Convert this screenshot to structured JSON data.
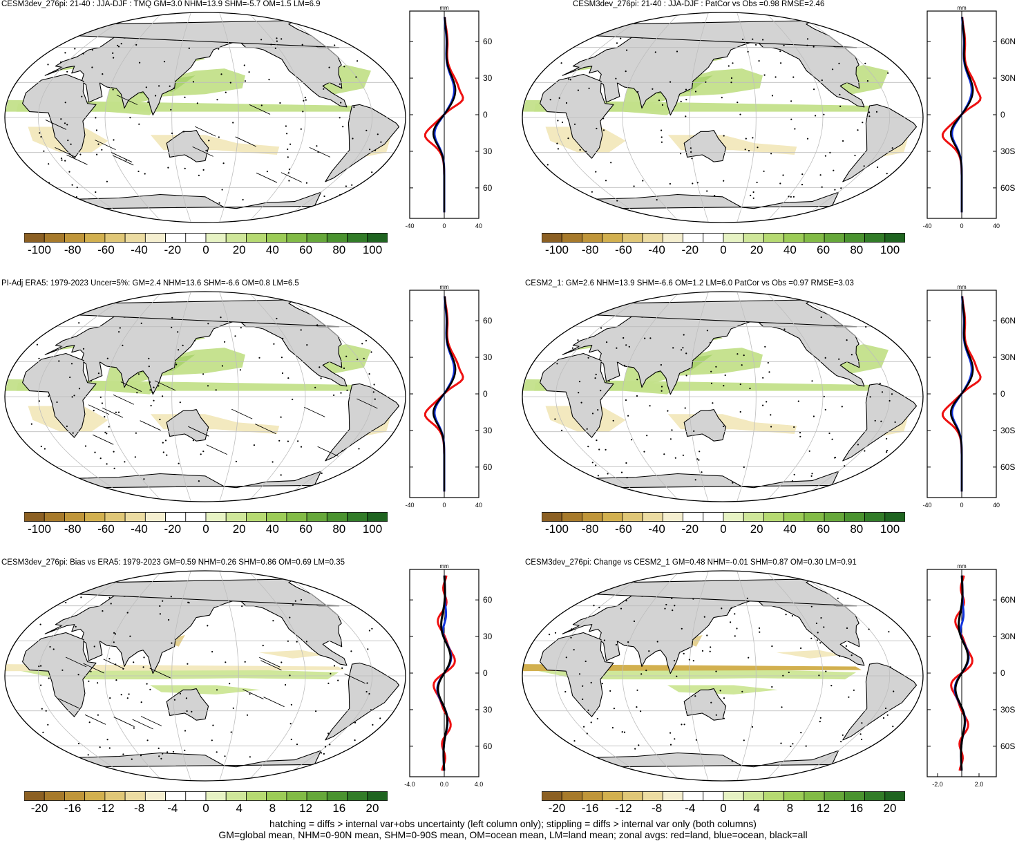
{
  "panels": [
    {
      "title": "CESM3dev_276pi: 21-40 : JJA-DJF : TMQ GM=3.0 NHM=13.9 SHM=-5.7 OM=1.5 LM=6.9",
      "zonal_unit": "mm",
      "zonal_lat_ticks": [
        "60N",
        "30N",
        "0",
        "30S",
        "60S"
      ],
      "zonal_x_ticks": [
        "-40",
        "0",
        "40"
      ],
      "colorbar_labels": [
        "-100",
        "-80",
        "-60",
        "-40",
        "-20",
        "0",
        "20",
        "40",
        "60",
        "80",
        "100"
      ]
    },
    {
      "title": "CESM3dev_276pi: 21-40 : JJA-DJF : PatCor vs Obs =0.98 RMSE=2.46",
      "zonal_unit": "mm",
      "zonal_lat_ticks": [
        "60N",
        "30N",
        "0",
        "30S",
        "60S"
      ],
      "zonal_x_ticks": [
        "-40",
        "0",
        "40"
      ],
      "colorbar_labels": [
        "-100",
        "-80",
        "-60",
        "-40",
        "-20",
        "0",
        "20",
        "40",
        "60",
        "80",
        "100"
      ]
    },
    {
      "title": "PI-Adj ERA5: 1979-2023 Uncer=5%: GM=2.4 NHM=13.6 SHM=-6.6 OM=0.8 LM=6.5",
      "zonal_unit": "mm",
      "zonal_lat_ticks": [
        "60N",
        "30N",
        "0",
        "30S",
        "60S"
      ],
      "zonal_x_ticks": [
        "-40",
        "0",
        "40"
      ],
      "colorbar_labels": [
        "-100",
        "-80",
        "-60",
        "-40",
        "-20",
        "0",
        "20",
        "40",
        "60",
        "80",
        "100"
      ]
    },
    {
      "title": "CESM2_1: GM=2.6 NHM=13.9 SHM=-6.6 OM=1.2 LM=6.0 PatCor vs Obs =0.97 RMSE=3.03",
      "zonal_unit": "mm",
      "zonal_lat_ticks": [
        "60N",
        "30N",
        "0",
        "30S",
        "60S"
      ],
      "zonal_x_ticks": [
        "-40",
        "0",
        "40"
      ],
      "colorbar_labels": [
        "-100",
        "-80",
        "-60",
        "-40",
        "-20",
        "0",
        "20",
        "40",
        "60",
        "80",
        "100"
      ]
    },
    {
      "title": "CESM3dev_276pi: Bias vs ERA5: 1979-2023 GM=0.59 NHM=0.26 SHM=0.86 OM=0.69 LM=0.35",
      "zonal_unit": "mm",
      "zonal_lat_ticks": [
        "60N",
        "30N",
        "0",
        "30S",
        "60S"
      ],
      "zonal_x_ticks": [
        "-4.0",
        "0.0",
        "4.0"
      ],
      "colorbar_labels": [
        "-20",
        "-16",
        "-12",
        "-8",
        "-4",
        "0",
        "4",
        "8",
        "12",
        "16",
        "20"
      ]
    },
    {
      "title": "CESM3dev_276pi: Change vs CESM2_1 GM=0.48 NHM=-0.01 SHM=0.87 OM=0.30 LM=0.91",
      "zonal_unit": "mm",
      "zonal_lat_ticks": [
        "60N",
        "30N",
        "0",
        "30S",
        "60S"
      ],
      "zonal_x_ticks": [
        "-2.0",
        "2.0"
      ],
      "colorbar_labels": [
        "-20",
        "-16",
        "-12",
        "-8",
        "-4",
        "0",
        "4",
        "8",
        "12",
        "16",
        "20"
      ]
    }
  ],
  "colorbar_colors": [
    "#8c6023",
    "#a77a2b",
    "#c0963a",
    "#d2b04f",
    "#e0c777",
    "#ecdca2",
    "#f5efd0",
    "#ffffff",
    "#ffffff",
    "#e7f3c4",
    "#cfe79a",
    "#b6da72",
    "#9ccc57",
    "#82bb46",
    "#66a83a",
    "#4a932f",
    "#327c28",
    "#1f6420"
  ],
  "zonal_line_colors": {
    "land": "#ee1111",
    "ocean": "#1133dd",
    "all": "#000000"
  },
  "footer": [
    "hatching = diffs > internal var+obs uncertainty (left column only); stippling = diffs > internal var only (both columns)",
    "GM=global mean, NHM=0-90N mean, SHM=0-90S mean, OM=ocean mean, LM=land mean; zonal avgs: red=land, blue=ocean, black=all"
  ]
}
